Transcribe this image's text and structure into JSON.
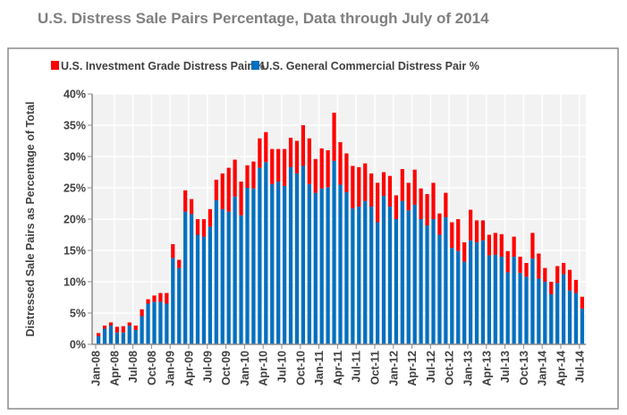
{
  "chart_data": {
    "type": "bar",
    "stacked": true,
    "title": "U.S. Distress Sale Pairs Percentage, Data through July of 2014",
    "xlabel": "",
    "ylabel": "Distressed Sale Pairs as Percentage of Total",
    "ylim": [
      0,
      40
    ],
    "y_ticks": [
      "0%",
      "5%",
      "10%",
      "15%",
      "20%",
      "25%",
      "30%",
      "35%",
      "40%"
    ],
    "grid": true,
    "legend_position": "top",
    "x_tick_labels": [
      "Jan-08",
      "Apr-08",
      "Jul-08",
      "Oct-08",
      "Jan-09",
      "Apr-09",
      "Jul-09",
      "Oct-09",
      "Jan-10",
      "Apr-10",
      "Jul-10",
      "Oct-10",
      "Jan-11",
      "Apr-11",
      "Jul-11",
      "Oct-11",
      "Jan-12",
      "Apr-12",
      "Jul-12",
      "Oct-12",
      "Jan-13",
      "Apr-13",
      "Jul-13",
      "Oct-13",
      "Jan-14",
      "Apr-14",
      "Jul-14"
    ],
    "categories": [
      "Jan-08",
      "Feb-08",
      "Mar-08",
      "Apr-08",
      "May-08",
      "Jun-08",
      "Jul-08",
      "Aug-08",
      "Sep-08",
      "Oct-08",
      "Nov-08",
      "Dec-08",
      "Jan-09",
      "Feb-09",
      "Mar-09",
      "Apr-09",
      "May-09",
      "Jun-09",
      "Jul-09",
      "Aug-09",
      "Sep-09",
      "Oct-09",
      "Nov-09",
      "Dec-09",
      "Jan-10",
      "Feb-10",
      "Mar-10",
      "Apr-10",
      "May-10",
      "Jun-10",
      "Jul-10",
      "Aug-10",
      "Sep-10",
      "Oct-10",
      "Nov-10",
      "Dec-10",
      "Jan-11",
      "Feb-11",
      "Mar-11",
      "Apr-11",
      "May-11",
      "Jun-11",
      "Jul-11",
      "Aug-11",
      "Sep-11",
      "Oct-11",
      "Nov-11",
      "Dec-11",
      "Jan-12",
      "Feb-12",
      "Mar-12",
      "Apr-12",
      "May-12",
      "Jun-12",
      "Jul-12",
      "Aug-12",
      "Sep-12",
      "Oct-12",
      "Nov-12",
      "Dec-12",
      "Jan-13",
      "Feb-13",
      "Mar-13",
      "Apr-13",
      "May-13",
      "Jun-13",
      "Jul-13",
      "Aug-13",
      "Sep-13",
      "Oct-13",
      "Nov-13",
      "Dec-13",
      "Jan-14",
      "Feb-14",
      "Mar-14",
      "Apr-14",
      "May-14",
      "Jun-14",
      "Jul-14"
    ],
    "series": [
      {
        "name": "U.S. General Commercial Distress Pair %",
        "color": "#0070c0",
        "values": [
          1.3,
          2.5,
          3.0,
          1.9,
          1.9,
          3.0,
          2.3,
          4.5,
          6.5,
          6.8,
          6.8,
          6.5,
          13.8,
          12.2,
          21.2,
          20.8,
          17.5,
          17.2,
          18.8,
          23.0,
          21.6,
          21.2,
          23.6,
          20.6,
          25.0,
          24.9,
          28.2,
          29.1,
          25.6,
          26.0,
          25.3,
          28.3,
          27.3,
          28.5,
          25.6,
          24.2,
          24.9,
          25.1,
          29.3,
          25.5,
          24.3,
          21.7,
          22.0,
          22.9,
          22.0,
          19.5,
          23.7,
          22.0,
          20.0,
          22.9,
          21.4,
          22.3,
          20.0,
          19.0,
          20.0,
          17.5,
          20.3,
          15.4,
          14.9,
          13.2,
          16.6,
          16.3,
          16.6,
          14.2,
          14.3,
          14.0,
          11.5,
          14.0,
          11.4,
          10.8,
          13.7,
          10.5,
          10.0,
          8.0,
          9.8,
          11.2,
          8.6,
          8.2,
          5.7
        ]
      },
      {
        "name": "U.S. Investment Grade Distress Pair %",
        "color": "#ff0000",
        "values": [
          0.5,
          0.5,
          0.5,
          0.9,
          1.0,
          0.5,
          0.7,
          1.1,
          0.7,
          1.0,
          1.4,
          1.7,
          2.2,
          1.3,
          3.4,
          2.4,
          2.5,
          2.8,
          2.8,
          3.3,
          5.7,
          7.0,
          5.9,
          5.4,
          3.6,
          4.3,
          4.7,
          4.8,
          5.6,
          5.2,
          5.9,
          4.7,
          5.2,
          6.5,
          7.3,
          5.4,
          6.4,
          5.9,
          7.7,
          6.8,
          6.2,
          6.8,
          6.3,
          6.0,
          5.3,
          6.3,
          3.8,
          4.9,
          3.8,
          5.1,
          4.4,
          5.6,
          4.9,
          5.0,
          5.8,
          3.4,
          3.9,
          4.1,
          5.1,
          3.1,
          4.9,
          3.5,
          3.2,
          3.3,
          3.5,
          3.6,
          3.4,
          3.2,
          2.6,
          2.2,
          4.1,
          4.0,
          2.2,
          2.0,
          2.7,
          1.8,
          3.3,
          2.1,
          1.9
        ]
      }
    ]
  }
}
